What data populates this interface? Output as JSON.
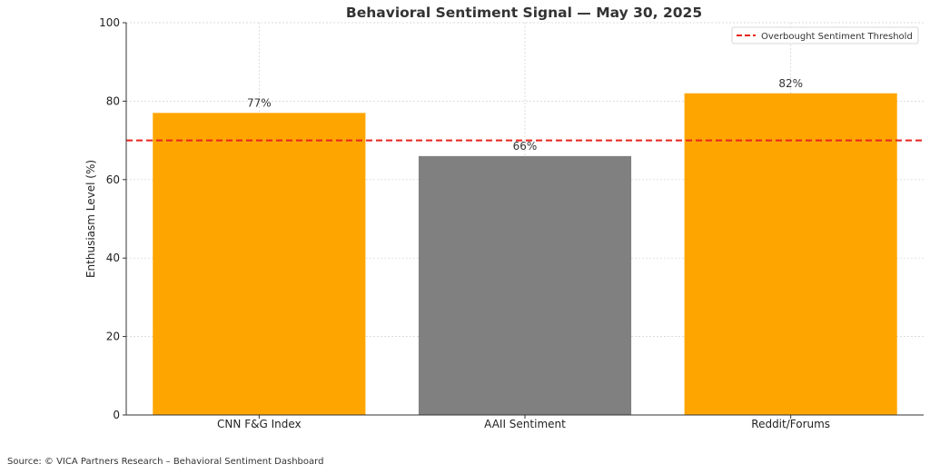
{
  "chart_data": {
    "type": "bar",
    "title": "Behavioral Sentiment Signal — May 30, 2025",
    "xlabel": "",
    "ylabel": "Enthusiasm Level (%)",
    "categories": [
      "CNN F&G Index",
      "AAII Sentiment",
      "Reddit/Forums"
    ],
    "values": [
      77,
      66,
      82
    ],
    "value_labels": [
      "77%",
      "66%",
      "82%"
    ],
    "bar_colors": [
      "#FFA500",
      "#808080",
      "#FFA500"
    ],
    "ylim": [
      0,
      100
    ],
    "yticks": [
      0,
      20,
      40,
      60,
      80,
      100
    ],
    "grid": true,
    "threshold": {
      "value": 70,
      "label": "Overbought Sentiment Threshold",
      "color": "#E8231E",
      "style": "dashed"
    },
    "legend_position": "top-right"
  },
  "footer": {
    "source": "Source: © VICA Partners Research – Behavioral Sentiment Dashboard"
  }
}
